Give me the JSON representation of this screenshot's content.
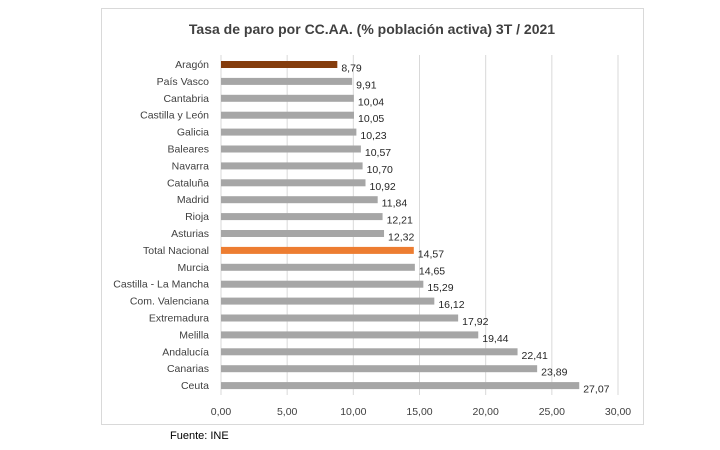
{
  "source_note": "Fuente: INE",
  "colors": {
    "default_bar": "#a6a6a6",
    "highlight_dark": "#843c0c",
    "highlight_orange": "#ed7d31",
    "grid": "#d9d9d9"
  },
  "chart_data": {
    "type": "bar",
    "orientation": "horizontal",
    "title": "Tasa de paro por CC.AA. (% población activa) 3T / 2021",
    "xlabel": "",
    "ylabel": "",
    "xlim": [
      0,
      30
    ],
    "x_ticks": [
      "0,00",
      "5,00",
      "10,00",
      "15,00",
      "20,00",
      "25,00",
      "30,00"
    ],
    "x_tick_values": [
      0,
      5,
      10,
      15,
      20,
      25,
      30
    ],
    "grid": "vertical",
    "categories": [
      "Aragón",
      "País Vasco",
      "Cantabria",
      "Castilla y León",
      "Galicia",
      "Baleares",
      "Navarra",
      "Cataluña",
      "Madrid",
      "Rioja",
      "Asturias",
      "Total Nacional",
      "Murcia",
      "Castilla - La Mancha",
      "Com. Valenciana",
      "Extremadura",
      "Melilla",
      "Andalucía",
      "Canarias",
      "Ceuta"
    ],
    "values": [
      8.79,
      9.91,
      10.04,
      10.05,
      10.23,
      10.57,
      10.7,
      10.92,
      11.84,
      12.21,
      12.32,
      14.57,
      14.65,
      15.29,
      16.12,
      17.92,
      19.44,
      22.41,
      23.89,
      27.07
    ],
    "value_labels": [
      "8,79",
      "9,91",
      "10,04",
      "10,05",
      "10,23",
      "10,57",
      "10,70",
      "10,92",
      "11,84",
      "12,21",
      "12,32",
      "14,57",
      "14,65",
      "15,29",
      "16,12",
      "17,92",
      "19,44",
      "22,41",
      "23,89",
      "27,07"
    ],
    "highlight": {
      "Aragón": "#843c0c",
      "Total Nacional": "#ed7d31"
    }
  }
}
